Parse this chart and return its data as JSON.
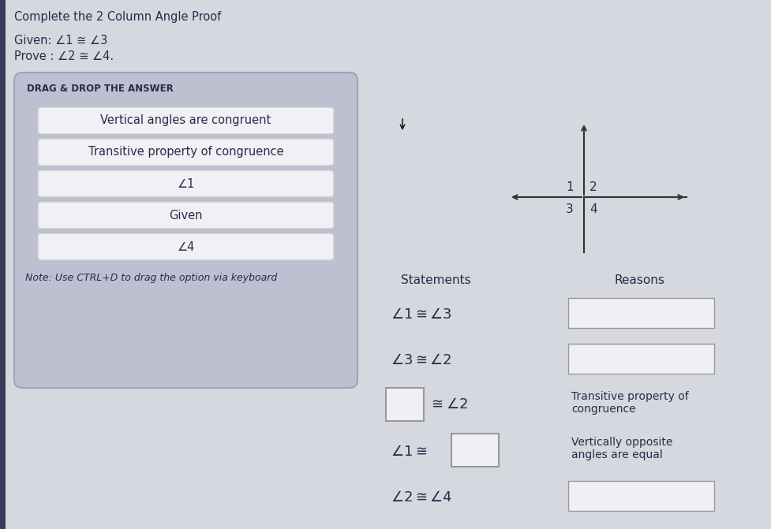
{
  "title": "Complete the 2 Column Angle Proof",
  "given": "Given: ∠1 ≅ ∠3",
  "prove": "Prove : ∠2 ≅ ∠4.",
  "drag_drop_title": "DRAG & DROP THE ANSWER",
  "drag_options": [
    "Vertical angles are congruent",
    "Transitive property of congruence",
    "∠1",
    "Given",
    "∠4"
  ],
  "note": "Note: Use CTRL+D to drag the option via keyboard",
  "statements_header": "Statements",
  "reasons_header": "Reasons",
  "main_bg": "#d6d8e0",
  "drag_panel_bg": "#bcc0d0",
  "option_bg": "#f0f0f5",
  "option_border": "#cccccc",
  "text_color": "#2a2a4a",
  "left_bar_color": "#3a3a5a",
  "reason_box_color": "#f0f0f4",
  "stmt_box_color": "#f0f0f4",
  "reason_box_border": "#999999",
  "cross_color": "#333333",
  "cursor_color": "#333333"
}
